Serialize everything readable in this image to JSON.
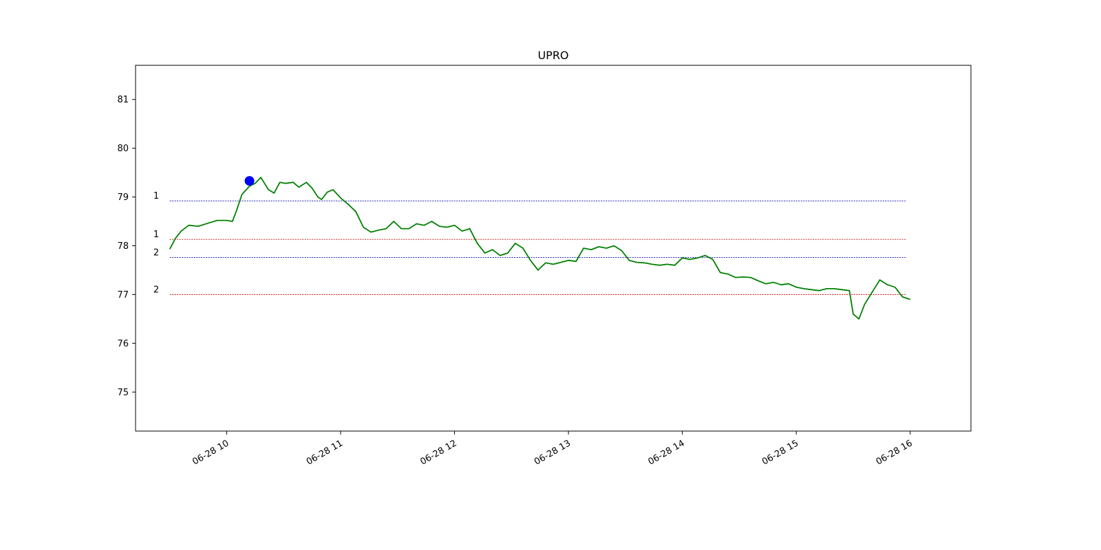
{
  "chart_data": {
    "type": "line",
    "title": "UPRO",
    "xlabel": "",
    "ylabel": "",
    "grid": false,
    "xlim": [
      "06-28 09:12",
      "06-28 16:32"
    ],
    "ylim": [
      74.2,
      81.7
    ],
    "x_ticks": [
      "06-28 10",
      "06-28 11",
      "06-28 12",
      "06-28 13",
      "06-28 14",
      "06-28 15",
      "06-28 16"
    ],
    "y_ticks": [
      75,
      76,
      77,
      78,
      79,
      80,
      81
    ],
    "series": [
      {
        "color": "#008000",
        "x": [
          "06-28 09:30",
          "06-28 09:33",
          "06-28 09:36",
          "06-28 09:40",
          "06-28 09:45",
          "06-28 09:50",
          "06-28 09:55",
          "06-28 10:00",
          "06-28 10:03",
          "06-28 10:05",
          "06-28 10:08",
          "06-28 10:12",
          "06-28 10:15",
          "06-28 10:18",
          "06-28 10:22",
          "06-28 10:25",
          "06-28 10:28",
          "06-28 10:31",
          "06-28 10:35",
          "06-28 10:38",
          "06-28 10:42",
          "06-28 10:45",
          "06-28 10:48",
          "06-28 10:50",
          "06-28 10:53",
          "06-28 10:56",
          "06-28 11:00",
          "06-28 11:04",
          "06-28 11:08",
          "06-28 11:12",
          "06-28 11:16",
          "06-28 11:20",
          "06-28 11:24",
          "06-28 11:28",
          "06-28 11:32",
          "06-28 11:36",
          "06-28 11:40",
          "06-28 11:44",
          "06-28 11:48",
          "06-28 11:52",
          "06-28 11:56",
          "06-28 12:00",
          "06-28 12:04",
          "06-28 12:08",
          "06-28 12:12",
          "06-28 12:16",
          "06-28 12:20",
          "06-28 12:24",
          "06-28 12:28",
          "06-28 12:32",
          "06-28 12:36",
          "06-28 12:40",
          "06-28 12:44",
          "06-28 12:48",
          "06-28 12:52",
          "06-28 12:56",
          "06-28 13:00",
          "06-28 13:04",
          "06-28 13:08",
          "06-28 13:12",
          "06-28 13:16",
          "06-28 13:20",
          "06-28 13:24",
          "06-28 13:28",
          "06-28 13:32",
          "06-28 13:36",
          "06-28 13:40",
          "06-28 13:44",
          "06-28 13:48",
          "06-28 13:52",
          "06-28 13:56",
          "06-28 14:00",
          "06-28 14:04",
          "06-28 14:08",
          "06-28 14:12",
          "06-28 14:16",
          "06-28 14:20",
          "06-28 14:24",
          "06-28 14:28",
          "06-28 14:32",
          "06-28 14:36",
          "06-28 14:40",
          "06-28 14:44",
          "06-28 14:48",
          "06-28 14:52",
          "06-28 14:56",
          "06-28 15:00",
          "06-28 15:04",
          "06-28 15:08",
          "06-28 15:12",
          "06-28 15:16",
          "06-28 15:20",
          "06-28 15:24",
          "06-28 15:28",
          "06-28 15:30",
          "06-28 15:33",
          "06-28 15:36",
          "06-28 15:40",
          "06-28 15:44",
          "06-28 15:48",
          "06-28 15:52",
          "06-28 15:56",
          "06-28 16:00"
        ],
        "y": [
          77.93,
          78.15,
          78.3,
          78.42,
          78.4,
          78.46,
          78.52,
          78.52,
          78.5,
          78.7,
          79.05,
          79.22,
          79.28,
          79.4,
          79.15,
          79.08,
          79.3,
          79.28,
          79.3,
          79.2,
          79.3,
          79.18,
          79.0,
          78.95,
          79.1,
          79.15,
          78.98,
          78.85,
          78.7,
          78.38,
          78.28,
          78.32,
          78.35,
          78.5,
          78.35,
          78.35,
          78.45,
          78.42,
          78.5,
          78.4,
          78.38,
          78.42,
          78.3,
          78.35,
          78.05,
          77.85,
          77.92,
          77.8,
          77.85,
          78.05,
          77.95,
          77.7,
          77.5,
          77.65,
          77.62,
          77.66,
          77.7,
          77.68,
          77.95,
          77.92,
          77.98,
          77.95,
          78.0,
          77.9,
          77.7,
          77.66,
          77.65,
          77.62,
          77.6,
          77.62,
          77.6,
          77.75,
          77.72,
          77.75,
          77.8,
          77.72,
          77.45,
          77.42,
          77.35,
          77.36,
          77.35,
          77.28,
          77.22,
          77.25,
          77.2,
          77.22,
          77.15,
          77.12,
          77.1,
          77.08,
          77.12,
          77.12,
          77.1,
          77.08,
          76.6,
          76.5,
          76.8,
          77.05,
          77.3,
          77.2,
          77.15,
          76.95,
          76.9
        ]
      }
    ],
    "marker": {
      "x": "06-28 10:12",
      "y": 79.33,
      "color": "#0000ff"
    },
    "levels": [
      {
        "label": "1",
        "y": 78.92,
        "color": "#0000aa"
      },
      {
        "label": "1",
        "y": 78.13,
        "color": "#cc0000"
      },
      {
        "label": "2",
        "y": 77.76,
        "color": "#0000aa"
      },
      {
        "label": "2",
        "y": 77.0,
        "color": "#cc0000"
      }
    ],
    "levels_x_range": [
      "06-28 09:30",
      "06-28 15:58"
    ]
  }
}
